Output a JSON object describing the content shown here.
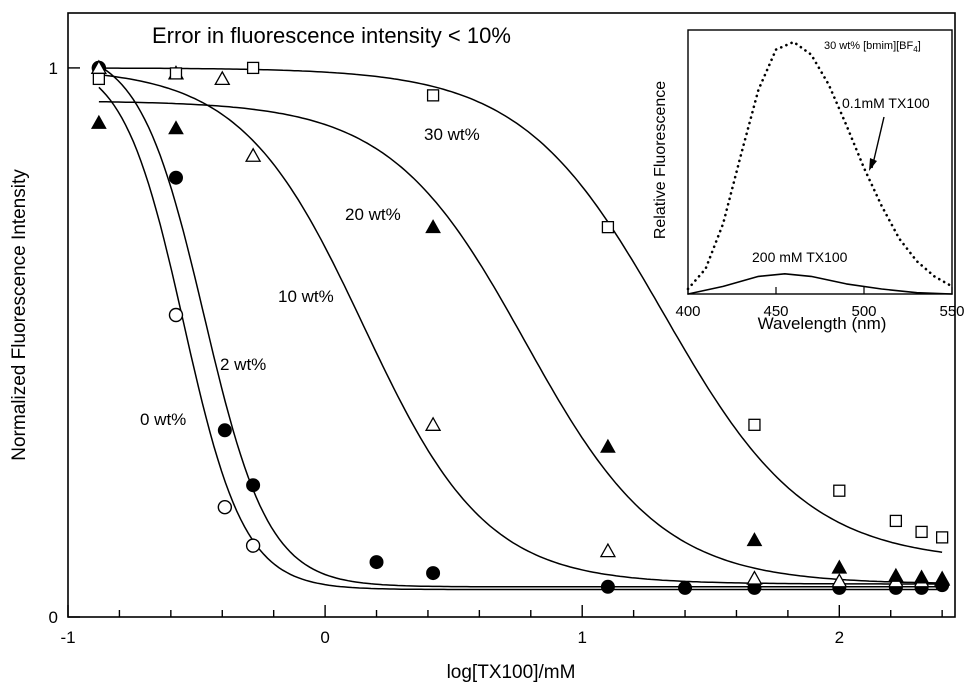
{
  "chart_data": [
    {
      "type": "scatter",
      "title": "Error in fluorescence intensity < 10%",
      "xlabel": "log[TX100]/mM",
      "ylabel": "Normalized Fluorescence Intensity",
      "xlim": [
        -1,
        2.45
      ],
      "ylim": [
        0,
        1.1
      ],
      "x_ticks": [
        -1,
        0,
        1,
        2
      ],
      "y_ticks": [
        0,
        1
      ],
      "grid": false,
      "series": [
        {
          "name": "0 wt%",
          "marker": "open-circle",
          "x": [
            -0.88,
            -0.58,
            -0.39,
            -0.28
          ],
          "y": [
            1.0,
            0.55,
            0.2,
            0.13
          ],
          "fit": {
            "top": 1.02,
            "bottom": 0.05,
            "x50": -0.55,
            "k": 8.5
          }
        },
        {
          "name": "2 wt%",
          "marker": "filled-circle",
          "x": [
            -0.88,
            -0.58,
            -0.39,
            -0.28,
            0.2,
            0.42,
            1.1,
            1.4,
            1.67,
            2.0,
            2.22,
            2.32,
            2.4
          ],
          "y": [
            1.0,
            0.8,
            0.34,
            0.24,
            0.1,
            0.08,
            0.055,
            0.053,
            0.053,
            0.053,
            0.053,
            0.053,
            0.058
          ],
          "fit": {
            "top": 1.04,
            "bottom": 0.055,
            "x50": -0.47,
            "k": 8
          }
        },
        {
          "name": "10 wt%",
          "marker": "open-triangle",
          "x": [
            -0.88,
            -0.58,
            -0.4,
            -0.28,
            0.42,
            1.1,
            1.67,
            2.0,
            2.22,
            2.32,
            2.4
          ],
          "y": [
            1.0,
            0.99,
            0.98,
            0.84,
            0.35,
            0.12,
            0.07,
            0.065,
            0.065,
            0.065,
            0.068
          ],
          "fit": {
            "top": 1.0,
            "bottom": 0.06,
            "x50": 0.15,
            "k": 4.2
          }
        },
        {
          "name": "20 wt%",
          "marker": "filled-triangle",
          "x": [
            -0.88,
            -0.58,
            0.42,
            1.1,
            1.67,
            2.0,
            2.22,
            2.32,
            2.4
          ],
          "y": [
            0.9,
            0.89,
            0.71,
            0.31,
            0.14,
            0.09,
            0.075,
            0.072,
            0.07
          ],
          "fit": {
            "top": 0.94,
            "bottom": 0.06,
            "x50": 0.78,
            "k": 3.8
          }
        },
        {
          "name": "30 wt%",
          "marker": "open-square",
          "x": [
            -0.88,
            -0.58,
            -0.28,
            0.42,
            1.1,
            1.67,
            2.0,
            2.22,
            2.32,
            2.4
          ],
          "y": [
            0.98,
            0.99,
            1.0,
            0.95,
            0.71,
            0.35,
            0.23,
            0.175,
            0.155,
            0.145
          ],
          "fit": {
            "top": 1.0,
            "bottom": 0.1,
            "x50": 1.32,
            "k": 3.6
          }
        }
      ],
      "annotations": [
        "30 wt%",
        "20 wt%",
        "10 wt%",
        "2 wt%",
        "0 wt%"
      ]
    },
    {
      "type": "line",
      "title": "30 wt% [bmim][BF4]",
      "title_parts": {
        "main": "30 wt% [bmim][BF",
        "subscript": "4",
        "suffix": "]"
      },
      "xlabel": "Wavelength (nm)",
      "ylabel": "Relative Fluorescence",
      "xlim": [
        400,
        550
      ],
      "x_ticks": [
        400,
        450,
        500,
        550
      ],
      "grid": false,
      "series": [
        {
          "name": "0.1mM TX100",
          "style": "dotted",
          "peak_x": 460,
          "peak_y": 1.0,
          "x": [
            400,
            410,
            420,
            430,
            440,
            450,
            460,
            470,
            480,
            490,
            500,
            510,
            520,
            530,
            540,
            550
          ],
          "y": [
            0.02,
            0.1,
            0.28,
            0.55,
            0.81,
            0.97,
            1.0,
            0.95,
            0.83,
            0.67,
            0.5,
            0.35,
            0.22,
            0.13,
            0.07,
            0.03
          ]
        },
        {
          "name": "200 mM TX100",
          "style": "solid",
          "peak_x": 455,
          "peak_y": 0.08,
          "x": [
            400,
            420,
            440,
            455,
            470,
            490,
            510,
            530,
            550
          ],
          "y": [
            0.0,
            0.03,
            0.07,
            0.08,
            0.07,
            0.04,
            0.02,
            0.005,
            0.0
          ]
        }
      ],
      "annotations": [
        "0.1mM TX100",
        "200 mM TX100"
      ]
    }
  ]
}
